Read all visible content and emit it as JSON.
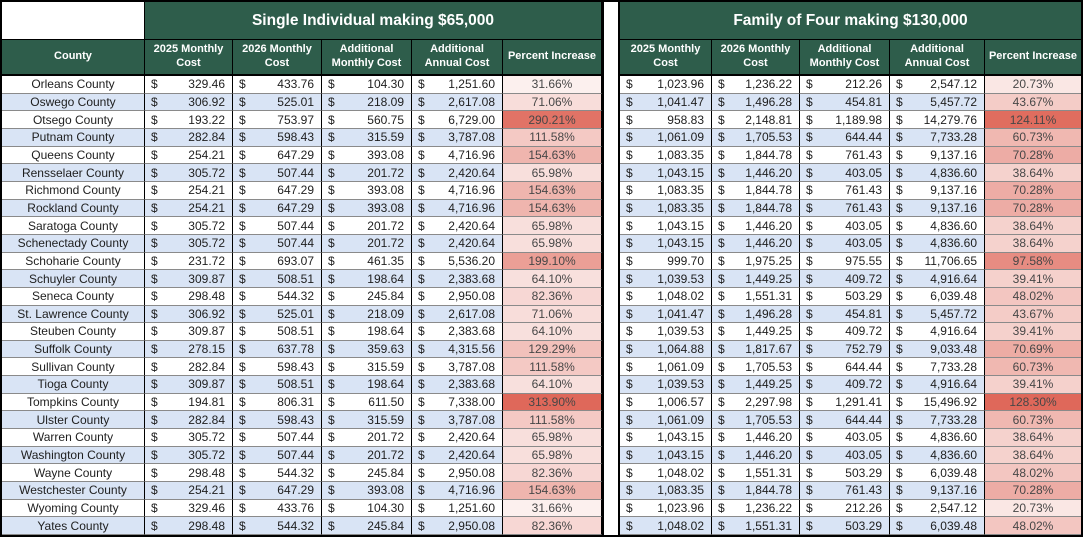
{
  "table": {
    "county_header": "County",
    "currency_symbol": "$",
    "sections": [
      {
        "title": "Single Individual making $65,000",
        "columns": [
          "2025 Monthly Cost",
          "2026 Monthly Cost",
          "Additional Monthly Cost",
          "Additional Annual Cost",
          "Percent Increase"
        ]
      },
      {
        "title": "Family of Four making $130,000",
        "columns": [
          "2025 Monthly Cost",
          "2026 Monthly Cost",
          "Additional Monthly Cost",
          "Additional Annual Cost",
          "Percent Increase"
        ]
      }
    ],
    "rows": [
      {
        "county": "Orleans County",
        "single": {
          "m2025": "329.46",
          "m2026": "433.76",
          "add_monthly": "104.30",
          "add_annual": "1,251.60",
          "pct": "31.66%"
        },
        "family": {
          "m2025": "1,023.96",
          "m2026": "1,236.22",
          "add_monthly": "212.26",
          "add_annual": "2,547.12",
          "pct": "20.73%"
        }
      },
      {
        "county": "Oswego County",
        "single": {
          "m2025": "306.92",
          "m2026": "525.01",
          "add_monthly": "218.09",
          "add_annual": "2,617.08",
          "pct": "71.06%"
        },
        "family": {
          "m2025": "1,041.47",
          "m2026": "1,496.28",
          "add_monthly": "454.81",
          "add_annual": "5,457.72",
          "pct": "43.67%"
        }
      },
      {
        "county": "Otsego County",
        "single": {
          "m2025": "193.22",
          "m2026": "753.97",
          "add_monthly": "560.75",
          "add_annual": "6,729.00",
          "pct": "290.21%"
        },
        "family": {
          "m2025": "958.83",
          "m2026": "2,148.81",
          "add_monthly": "1,189.98",
          "add_annual": "14,279.76",
          "pct": "124.11%"
        }
      },
      {
        "county": "Putnam County",
        "single": {
          "m2025": "282.84",
          "m2026": "598.43",
          "add_monthly": "315.59",
          "add_annual": "3,787.08",
          "pct": "111.58%"
        },
        "family": {
          "m2025": "1,061.09",
          "m2026": "1,705.53",
          "add_monthly": "644.44",
          "add_annual": "7,733.28",
          "pct": "60.73%"
        }
      },
      {
        "county": "Queens County",
        "single": {
          "m2025": "254.21",
          "m2026": "647.29",
          "add_monthly": "393.08",
          "add_annual": "4,716.96",
          "pct": "154.63%"
        },
        "family": {
          "m2025": "1,083.35",
          "m2026": "1,844.78",
          "add_monthly": "761.43",
          "add_annual": "9,137.16",
          "pct": "70.28%"
        }
      },
      {
        "county": "Rensselaer County",
        "single": {
          "m2025": "305.72",
          "m2026": "507.44",
          "add_monthly": "201.72",
          "add_annual": "2,420.64",
          "pct": "65.98%"
        },
        "family": {
          "m2025": "1,043.15",
          "m2026": "1,446.20",
          "add_monthly": "403.05",
          "add_annual": "4,836.60",
          "pct": "38.64%"
        }
      },
      {
        "county": "Richmond County",
        "single": {
          "m2025": "254.21",
          "m2026": "647.29",
          "add_monthly": "393.08",
          "add_annual": "4,716.96",
          "pct": "154.63%"
        },
        "family": {
          "m2025": "1,083.35",
          "m2026": "1,844.78",
          "add_monthly": "761.43",
          "add_annual": "9,137.16",
          "pct": "70.28%"
        }
      },
      {
        "county": "Rockland County",
        "single": {
          "m2025": "254.21",
          "m2026": "647.29",
          "add_monthly": "393.08",
          "add_annual": "4,716.96",
          "pct": "154.63%"
        },
        "family": {
          "m2025": "1,083.35",
          "m2026": "1,844.78",
          "add_monthly": "761.43",
          "add_annual": "9,137.16",
          "pct": "70.28%"
        }
      },
      {
        "county": "Saratoga County",
        "single": {
          "m2025": "305.72",
          "m2026": "507.44",
          "add_monthly": "201.72",
          "add_annual": "2,420.64",
          "pct": "65.98%"
        },
        "family": {
          "m2025": "1,043.15",
          "m2026": "1,446.20",
          "add_monthly": "403.05",
          "add_annual": "4,836.60",
          "pct": "38.64%"
        }
      },
      {
        "county": "Schenectady County",
        "single": {
          "m2025": "305.72",
          "m2026": "507.44",
          "add_monthly": "201.72",
          "add_annual": "2,420.64",
          "pct": "65.98%"
        },
        "family": {
          "m2025": "1,043.15",
          "m2026": "1,446.20",
          "add_monthly": "403.05",
          "add_annual": "4,836.60",
          "pct": "38.64%"
        }
      },
      {
        "county": "Schoharie County",
        "single": {
          "m2025": "231.72",
          "m2026": "693.07",
          "add_monthly": "461.35",
          "add_annual": "5,536.20",
          "pct": "199.10%"
        },
        "family": {
          "m2025": "999.70",
          "m2026": "1,975.25",
          "add_monthly": "975.55",
          "add_annual": "11,706.65",
          "pct": "97.58%"
        }
      },
      {
        "county": "Schuyler County",
        "single": {
          "m2025": "309.87",
          "m2026": "508.51",
          "add_monthly": "198.64",
          "add_annual": "2,383.68",
          "pct": "64.10%"
        },
        "family": {
          "m2025": "1,039.53",
          "m2026": "1,449.25",
          "add_monthly": "409.72",
          "add_annual": "4,916.64",
          "pct": "39.41%"
        }
      },
      {
        "county": "Seneca County",
        "single": {
          "m2025": "298.48",
          "m2026": "544.32",
          "add_monthly": "245.84",
          "add_annual": "2,950.08",
          "pct": "82.36%"
        },
        "family": {
          "m2025": "1,048.02",
          "m2026": "1,551.31",
          "add_monthly": "503.29",
          "add_annual": "6,039.48",
          "pct": "48.02%"
        }
      },
      {
        "county": "St. Lawrence County",
        "single": {
          "m2025": "306.92",
          "m2026": "525.01",
          "add_monthly": "218.09",
          "add_annual": "2,617.08",
          "pct": "71.06%"
        },
        "family": {
          "m2025": "1,041.47",
          "m2026": "1,496.28",
          "add_monthly": "454.81",
          "add_annual": "5,457.72",
          "pct": "43.67%"
        }
      },
      {
        "county": "Steuben County",
        "single": {
          "m2025": "309.87",
          "m2026": "508.51",
          "add_monthly": "198.64",
          "add_annual": "2,383.68",
          "pct": "64.10%"
        },
        "family": {
          "m2025": "1,039.53",
          "m2026": "1,449.25",
          "add_monthly": "409.72",
          "add_annual": "4,916.64",
          "pct": "39.41%"
        }
      },
      {
        "county": "Suffolk County",
        "single": {
          "m2025": "278.15",
          "m2026": "637.78",
          "add_monthly": "359.63",
          "add_annual": "4,315.56",
          "pct": "129.29%"
        },
        "family": {
          "m2025": "1,064.88",
          "m2026": "1,817.67",
          "add_monthly": "752.79",
          "add_annual": "9,033.48",
          "pct": "70.69%"
        }
      },
      {
        "county": "Sullivan County",
        "single": {
          "m2025": "282.84",
          "m2026": "598.43",
          "add_monthly": "315.59",
          "add_annual": "3,787.08",
          "pct": "111.58%"
        },
        "family": {
          "m2025": "1,061.09",
          "m2026": "1,705.53",
          "add_monthly": "644.44",
          "add_annual": "7,733.28",
          "pct": "60.73%"
        }
      },
      {
        "county": "Tioga County",
        "single": {
          "m2025": "309.87",
          "m2026": "508.51",
          "add_monthly": "198.64",
          "add_annual": "2,383.68",
          "pct": "64.10%"
        },
        "family": {
          "m2025": "1,039.53",
          "m2026": "1,449.25",
          "add_monthly": "409.72",
          "add_annual": "4,916.64",
          "pct": "39.41%"
        }
      },
      {
        "county": "Tompkins County",
        "single": {
          "m2025": "194.81",
          "m2026": "806.31",
          "add_monthly": "611.50",
          "add_annual": "7,338.00",
          "pct": "313.90%"
        },
        "family": {
          "m2025": "1,006.57",
          "m2026": "2,297.98",
          "add_monthly": "1,291.41",
          "add_annual": "15,496.92",
          "pct": "128.30%"
        }
      },
      {
        "county": "Ulster County",
        "single": {
          "m2025": "282.84",
          "m2026": "598.43",
          "add_monthly": "315.59",
          "add_annual": "3,787.08",
          "pct": "111.58%"
        },
        "family": {
          "m2025": "1,061.09",
          "m2026": "1,705.53",
          "add_monthly": "644.44",
          "add_annual": "7,733.28",
          "pct": "60.73%"
        }
      },
      {
        "county": "Warren County",
        "single": {
          "m2025": "305.72",
          "m2026": "507.44",
          "add_monthly": "201.72",
          "add_annual": "2,420.64",
          "pct": "65.98%"
        },
        "family": {
          "m2025": "1,043.15",
          "m2026": "1,446.20",
          "add_monthly": "403.05",
          "add_annual": "4,836.60",
          "pct": "38.64%"
        }
      },
      {
        "county": "Washington County",
        "single": {
          "m2025": "305.72",
          "m2026": "507.44",
          "add_monthly": "201.72",
          "add_annual": "2,420.64",
          "pct": "65.98%"
        },
        "family": {
          "m2025": "1,043.15",
          "m2026": "1,446.20",
          "add_monthly": "403.05",
          "add_annual": "4,836.60",
          "pct": "38.64%"
        }
      },
      {
        "county": "Wayne County",
        "single": {
          "m2025": "298.48",
          "m2026": "544.32",
          "add_monthly": "245.84",
          "add_annual": "2,950.08",
          "pct": "82.36%"
        },
        "family": {
          "m2025": "1,048.02",
          "m2026": "1,551.31",
          "add_monthly": "503.29",
          "add_annual": "6,039.48",
          "pct": "48.02%"
        }
      },
      {
        "county": "Westchester County",
        "single": {
          "m2025": "254.21",
          "m2026": "647.29",
          "add_monthly": "393.08",
          "add_annual": "4,716.96",
          "pct": "154.63%"
        },
        "family": {
          "m2025": "1,083.35",
          "m2026": "1,844.78",
          "add_monthly": "761.43",
          "add_annual": "9,137.16",
          "pct": "70.28%"
        }
      },
      {
        "county": "Wyoming County",
        "single": {
          "m2025": "329.46",
          "m2026": "433.76",
          "add_monthly": "104.30",
          "add_annual": "1,251.60",
          "pct": "31.66%"
        },
        "family": {
          "m2025": "1,023.96",
          "m2026": "1,236.22",
          "add_monthly": "212.26",
          "add_annual": "2,547.12",
          "pct": "20.73%"
        }
      },
      {
        "county": "Yates County",
        "single": {
          "m2025": "298.48",
          "m2026": "544.32",
          "add_monthly": "245.84",
          "add_annual": "2,950.08",
          "pct": "82.36%"
        },
        "family": {
          "m2025": "1,048.02",
          "m2026": "1,551.31",
          "add_monthly": "503.29",
          "add_annual": "6,039.48",
          "pct": "48.02%"
        }
      }
    ]
  },
  "colors": {
    "header_green": "#2e5d4b",
    "alt_row_blue": "#d9e4f5",
    "percent_scale_min": "#ffffff",
    "percent_scale_max": "#df685a"
  }
}
